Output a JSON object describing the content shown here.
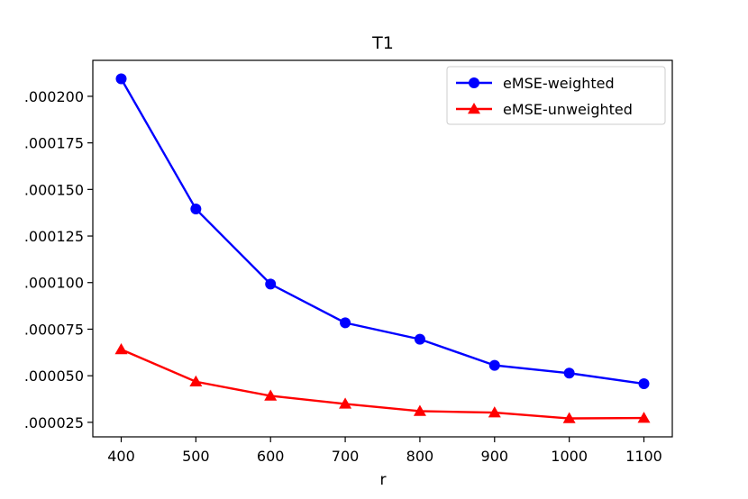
{
  "chart_data": {
    "type": "line",
    "title": "T1",
    "xlabel": "r",
    "ylabel": "",
    "x": [
      400,
      500,
      600,
      700,
      800,
      900,
      1000,
      1100
    ],
    "xlim": [
      362,
      1138
    ],
    "ylim": [
      1.72e-05,
      0.0002193
    ],
    "x_ticks": [
      400,
      500,
      600,
      700,
      800,
      900,
      1000,
      1100
    ],
    "x_tick_labels": [
      "400",
      "500",
      "600",
      "700",
      "800",
      "900",
      "1000",
      "1100"
    ],
    "y_ticks": [
      2.5e-05,
      5e-05,
      7.5e-05,
      0.0001,
      0.000125,
      0.00015,
      0.000175,
      0.0002
    ],
    "y_tick_labels": [
      ".000025",
      ".000050",
      ".000075",
      ".000100",
      ".000125",
      ".000150",
      ".000175",
      ".000200"
    ],
    "grid": false,
    "legend": "top-right",
    "series": [
      {
        "name": "eMSE-weighted",
        "color": "#0000ff",
        "marker": "circle",
        "values": [
          0.0002094,
          0.0001395,
          9.92e-05,
          7.84e-05,
          6.96e-05,
          5.56e-05,
          5.14e-05,
          4.57e-05
        ]
      },
      {
        "name": "eMSE-unweighted",
        "color": "#ff0000",
        "marker": "triangle",
        "values": [
          6.41e-05,
          4.68e-05,
          3.92e-05,
          3.49e-05,
          3.1e-05,
          3.02e-05,
          2.71e-05,
          2.73e-05
        ]
      }
    ]
  }
}
